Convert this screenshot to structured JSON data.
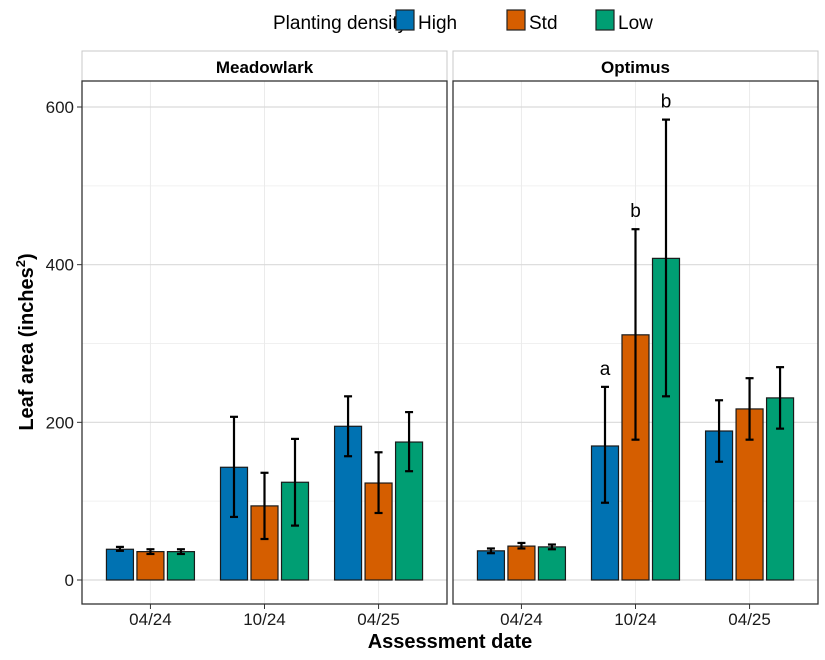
{
  "chart_data": {
    "type": "bar",
    "ylabel": "Leaf area (inches",
    "ylabel_superscript": "2",
    "ylabel_suffix": ")",
    "xlabel": "Assessment date",
    "ylim": [
      0,
      630
    ],
    "yticks": [
      0,
      200,
      400,
      600
    ],
    "grid": true,
    "legend": {
      "title": "Planting density",
      "placement": "top",
      "entries": [
        {
          "name": "High",
          "color": "#0072B2"
        },
        {
          "name": "Std",
          "color": "#D55E00"
        },
        {
          "name": "Low",
          "color": "#009E73"
        }
      ]
    },
    "categories": [
      "04/24",
      "10/24",
      "04/25"
    ],
    "panels": [
      {
        "title": "Meadowlark",
        "series": [
          {
            "name": "High",
            "values": [
              39,
              143,
              195
            ],
            "err_low": [
              37,
              80,
              157
            ],
            "err_high": [
              42,
              207,
              233
            ]
          },
          {
            "name": "Std",
            "values": [
              36,
              94,
              123
            ],
            "err_low": [
              33,
              52,
              85
            ],
            "err_high": [
              39,
              136,
              162
            ]
          },
          {
            "name": "Low",
            "values": [
              36,
              124,
              175
            ],
            "err_low": [
              33,
              69,
              138
            ],
            "err_high": [
              39,
              179,
              213
            ]
          }
        ],
        "annotations": []
      },
      {
        "title": "Optimus",
        "series": [
          {
            "name": "High",
            "values": [
              37,
              170,
              189
            ],
            "err_low": [
              34,
              98,
              150
            ],
            "err_high": [
              40,
              245,
              228
            ]
          },
          {
            "name": "Std",
            "values": [
              43,
              311,
              217
            ],
            "err_low": [
              40,
              178,
              178
            ],
            "err_high": [
              47,
              445,
              256
            ]
          },
          {
            "name": "Low",
            "values": [
              42,
              408,
              231
            ],
            "err_low": [
              39,
              233,
              192
            ],
            "err_high": [
              45,
              584,
              270
            ]
          }
        ],
        "annotations": [
          {
            "category": "10/24",
            "series": "High",
            "label": "a"
          },
          {
            "category": "10/24",
            "series": "Std",
            "label": "b"
          },
          {
            "category": "10/24",
            "series": "Low",
            "label": "b"
          }
        ]
      }
    ]
  }
}
